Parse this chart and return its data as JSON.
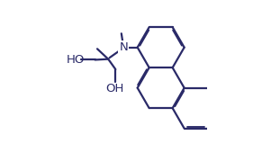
{
  "bg_color": "#ffffff",
  "line_color": "#2a2a68",
  "line_width": 1.6,
  "dbo": 0.008,
  "figsize": [
    2.81,
    1.8
  ],
  "dpi": 100,
  "r": 0.16,
  "xlim": [
    -0.05,
    1.05
  ],
  "ylim": [
    -0.05,
    1.05
  ]
}
